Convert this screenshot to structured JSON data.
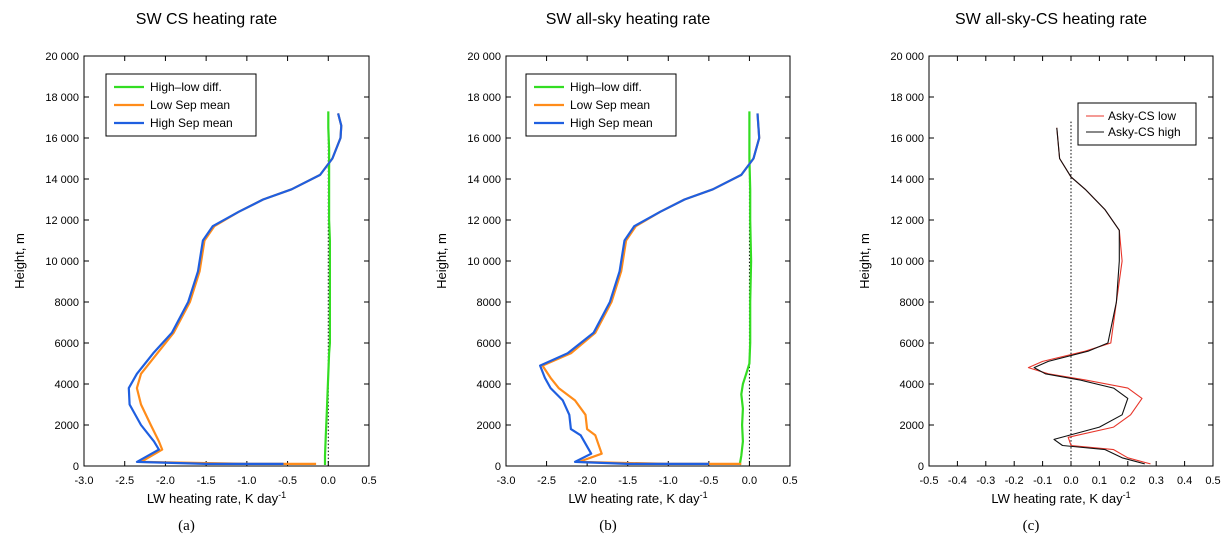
{
  "chart_data": [
    {
      "type": "line",
      "title": "SW CS heating rate",
      "xlabel": "LW  heating rate, K day",
      "xlabel_sup": "-1",
      "ylabel": "Height, m",
      "caption": "(a)",
      "xlim": [
        -3.0,
        0.5
      ],
      "ylim": [
        0,
        20000
      ],
      "xticks": [
        "-3.0",
        "-2.5",
        "-2.0",
        "-1.5",
        "-1.0",
        "-0.5",
        "0.0",
        "0.5"
      ],
      "yticks": [
        "0",
        "2000",
        "4000",
        "6000",
        "8000",
        "10 000",
        "12 000",
        "14 000",
        "16 000",
        "18 000",
        "20 000"
      ],
      "legend_position": "top-left",
      "zero_line": true,
      "series": [
        {
          "name": "High–low diff.",
          "color": "#33dd22",
          "x": [
            -0.04,
            -0.04,
            -0.03,
            -0.02,
            -0.01,
            0.0,
            0.01,
            0.02,
            0.02,
            0.02,
            0.02,
            0.01,
            0.01,
            0.01,
            0.01,
            0.0,
            0.0
          ],
          "y": [
            50,
            500,
            1500,
            2500,
            3500,
            4500,
            5500,
            6000,
            8000,
            10000,
            11000,
            12000,
            13500,
            14500,
            15500,
            16500,
            17300
          ]
        },
        {
          "name": "Low Sep mean",
          "color": "#ff8c1a",
          "x": [
            -0.15,
            -1.0,
            -2.3,
            -2.04,
            -2.08,
            -2.18,
            -2.3,
            -2.35,
            -2.3,
            -2.1,
            -1.9,
            -1.7,
            -1.58,
            -1.52,
            -1.4,
            -1.1,
            -0.8,
            -0.45,
            -0.1,
            0.05,
            0.15,
            0.16,
            0.12
          ],
          "y": [
            100,
            100,
            200,
            800,
            1200,
            2000,
            3000,
            3800,
            4500,
            5500,
            6500,
            8000,
            9500,
            11000,
            11700,
            12400,
            13000,
            13500,
            14200,
            15000,
            16000,
            16600,
            17200
          ]
        },
        {
          "name": "High Sep mean",
          "color": "#1f5fe0",
          "x": [
            -0.55,
            -1.5,
            -2.35,
            -2.08,
            -2.14,
            -2.3,
            -2.44,
            -2.45,
            -2.35,
            -2.15,
            -1.92,
            -1.72,
            -1.6,
            -1.54,
            -1.42,
            -1.1,
            -0.8,
            -0.45,
            -0.1,
            0.05,
            0.15,
            0.16,
            0.12
          ],
          "y": [
            100,
            100,
            200,
            800,
            1200,
            2000,
            3000,
            3800,
            4500,
            5500,
            6500,
            8000,
            9500,
            11000,
            11700,
            12400,
            13000,
            13500,
            14200,
            15000,
            16000,
            16600,
            17200
          ]
        }
      ]
    },
    {
      "type": "line",
      "title": "SW all-sky heating rate",
      "xlabel": "LW  heating rate, K day",
      "xlabel_sup": "-1",
      "ylabel": "Height, m",
      "caption": "(b)",
      "xlim": [
        -3.0,
        0.5
      ],
      "ylim": [
        0,
        20000
      ],
      "xticks": [
        "-3.0",
        "-2.5",
        "-2.0",
        "-1.5",
        "-1.0",
        "-0.5",
        "0.0",
        "0.5"
      ],
      "yticks": [
        "0",
        "2000",
        "4000",
        "6000",
        "8000",
        "10 000",
        "12 000",
        "14 000",
        "16 000",
        "18 000",
        "20 000"
      ],
      "legend_position": "top-left",
      "zero_line": true,
      "series": [
        {
          "name": "High–low diff.",
          "color": "#33dd22",
          "x": [
            -0.12,
            -0.1,
            -0.08,
            -0.09,
            -0.08,
            -0.1,
            -0.08,
            -0.04,
            0.0,
            0.01,
            0.01,
            0.02,
            0.01,
            0.01,
            0.0,
            0.0,
            0.0
          ],
          "y": [
            50,
            500,
            1200,
            2000,
            2800,
            3500,
            4000,
            4500,
            5000,
            6000,
            8000,
            10000,
            12000,
            13500,
            15000,
            16500,
            17300
          ]
        },
        {
          "name": "Low Sep mean",
          "color": "#ff8c1a",
          "x": [
            -0.1,
            -1.0,
            -2.1,
            -1.82,
            -1.9,
            -2.0,
            -2.02,
            -2.15,
            -2.35,
            -2.45,
            -2.55,
            -2.2,
            -1.9,
            -1.7,
            -1.58,
            -1.52,
            -1.4,
            -1.1,
            -0.8,
            -0.45,
            -0.1,
            0.05,
            0.12,
            0.1
          ],
          "y": [
            100,
            100,
            200,
            600,
            1500,
            1800,
            2500,
            3200,
            3800,
            4300,
            4900,
            5500,
            6500,
            8000,
            9500,
            11000,
            11700,
            12400,
            13000,
            13500,
            14200,
            15000,
            16000,
            17200
          ]
        },
        {
          "name": "High Sep mean",
          "color": "#1f5fe0",
          "x": [
            -0.5,
            -1.5,
            -2.15,
            -1.95,
            -2.08,
            -2.2,
            -2.22,
            -2.3,
            -2.45,
            -2.52,
            -2.58,
            -2.24,
            -1.92,
            -1.72,
            -1.6,
            -1.54,
            -1.42,
            -1.1,
            -0.8,
            -0.45,
            -0.1,
            0.05,
            0.12,
            0.1
          ],
          "y": [
            100,
            100,
            200,
            600,
            1500,
            1800,
            2500,
            3200,
            3800,
            4300,
            4900,
            5500,
            6500,
            8000,
            9500,
            11000,
            11700,
            12400,
            13000,
            13500,
            14200,
            15000,
            16000,
            17200
          ]
        }
      ]
    },
    {
      "type": "line",
      "title": "SW all-sky-CS heating rate",
      "xlabel": "LW  heating rate, K day",
      "xlabel_sup": "-1",
      "ylabel": "Height, m",
      "caption": "(c)",
      "xlim": [
        -0.5,
        0.5
      ],
      "ylim": [
        0,
        20000
      ],
      "xticks": [
        "-0.5",
        "-0.4",
        "-0.3",
        "-0.2",
        "-0.1",
        "0.0",
        "0.1",
        "0.2",
        "0.3",
        "0.4",
        "0.5"
      ],
      "yticks": [
        "0",
        "2000",
        "4000",
        "6000",
        "8000",
        "10 000",
        "12 000",
        "14 000",
        "16 000",
        "18 000",
        "20 000"
      ],
      "legend_position": "top-right",
      "zero_line": true,
      "series": [
        {
          "name": "Asky-CS low",
          "color": "#e8362b",
          "x": [
            0.28,
            0.2,
            0.15,
            0.0,
            -0.01,
            0.15,
            0.21,
            0.25,
            0.2,
            0.05,
            -0.08,
            -0.15,
            -0.1,
            0.05,
            0.14,
            0.16,
            0.18,
            0.17,
            0.12,
            0.05,
            0.0,
            -0.04,
            -0.05
          ],
          "y": [
            100,
            400,
            800,
            1000,
            1400,
            1900,
            2500,
            3300,
            3800,
            4200,
            4500,
            4800,
            5100,
            5600,
            6000,
            8000,
            10000,
            11500,
            12500,
            13500,
            14100,
            15000,
            16500
          ]
        },
        {
          "name": "Asky-CS  high",
          "color": "#111111",
          "x": [
            0.26,
            0.18,
            0.12,
            -0.03,
            -0.06,
            0.1,
            0.18,
            0.2,
            0.15,
            0.03,
            -0.09,
            -0.13,
            -0.08,
            0.06,
            0.13,
            0.16,
            0.17,
            0.17,
            0.12,
            0.05,
            0.0,
            -0.04,
            -0.05
          ],
          "y": [
            100,
            400,
            800,
            1000,
            1300,
            1900,
            2500,
            3300,
            3800,
            4200,
            4500,
            4800,
            5100,
            5600,
            6000,
            8000,
            10000,
            11500,
            12500,
            13500,
            14100,
            15000,
            16500
          ]
        }
      ]
    }
  ]
}
